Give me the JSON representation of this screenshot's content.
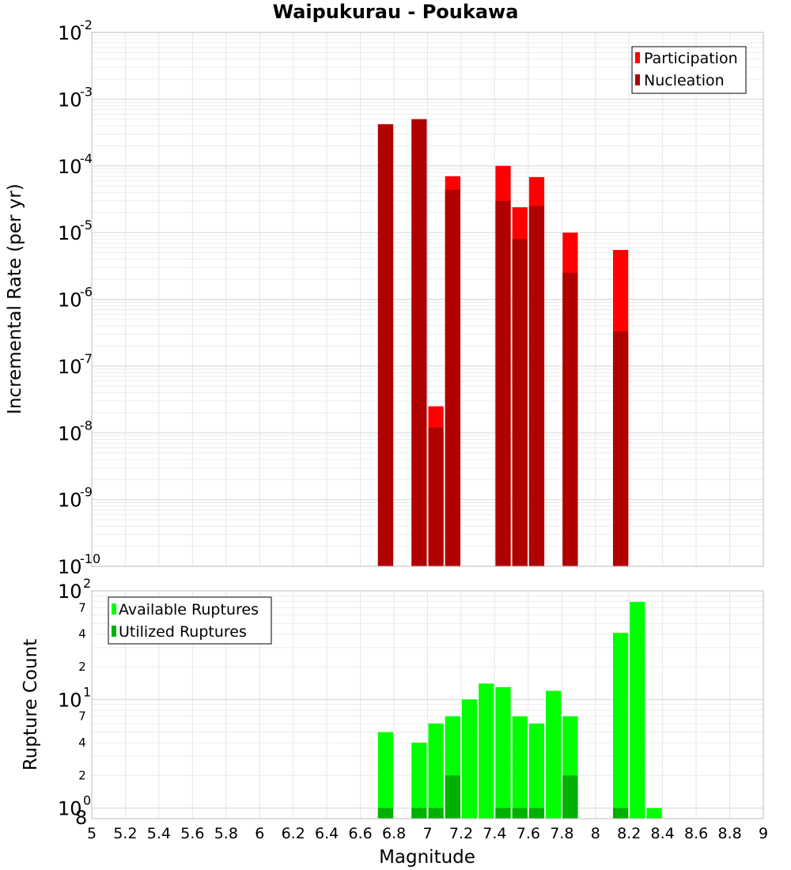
{
  "chart_data": [
    {
      "type": "bar",
      "title": "Waipukurau - Poukawa",
      "xlabel": "",
      "ylabel": "Incremental Rate (per yr)",
      "yscale": "log",
      "ylim": [
        1e-10,
        0.01
      ],
      "xlim": [
        5,
        9
      ],
      "grid": true,
      "legend": {
        "position": "top-right",
        "entries": [
          "Participation",
          "Nucleation"
        ]
      },
      "y_tick_labels": [
        "10-10",
        "10-9",
        "10-8",
        "10-7",
        "10-6",
        "10-5",
        "10-4",
        "10-3",
        "10-2"
      ],
      "series": [
        {
          "name": "Participation",
          "color": "#ff0000",
          "points": [
            {
              "x": 6.75,
              "y": 0.00042
            },
            {
              "x": 6.95,
              "y": 0.0005
            },
            {
              "x": 7.05,
              "y": 2.5e-08
            },
            {
              "x": 7.15,
              "y": 7e-05
            },
            {
              "x": 7.45,
              "y": 0.0001
            },
            {
              "x": 7.55,
              "y": 2.4e-05
            },
            {
              "x": 7.65,
              "y": 6.8e-05
            },
            {
              "x": 7.85,
              "y": 1e-05
            },
            {
              "x": 8.15,
              "y": 5.5e-06
            }
          ]
        },
        {
          "name": "Nucleation",
          "color": "#b00000",
          "points": [
            {
              "x": 6.75,
              "y": 0.00042
            },
            {
              "x": 6.95,
              "y": 0.0005
            },
            {
              "x": 7.05,
              "y": 1.2e-08
            },
            {
              "x": 7.15,
              "y": 4.4e-05
            },
            {
              "x": 7.45,
              "y": 3e-05
            },
            {
              "x": 7.55,
              "y": 8e-06
            },
            {
              "x": 7.65,
              "y": 2.5e-05
            },
            {
              "x": 7.85,
              "y": 2.5e-06
            },
            {
              "x": 8.15,
              "y": 3.3e-07
            }
          ]
        }
      ]
    },
    {
      "type": "bar",
      "title": "",
      "xlabel": "Magnitude",
      "ylabel": "Rupture Count",
      "yscale": "log",
      "ylim": [
        0.8,
        100
      ],
      "xlim": [
        5,
        9
      ],
      "grid": true,
      "legend": {
        "position": "top-left",
        "entries": [
          "Available Ruptures",
          "Utilized Ruptures"
        ]
      },
      "x_ticks": [
        5,
        5.2,
        5.4,
        5.6,
        5.8,
        6,
        6.2,
        6.4,
        6.6,
        6.8,
        7,
        7.2,
        7.4,
        7.6,
        7.8,
        8,
        8.2,
        8.4,
        8.6,
        8.8,
        9
      ],
      "x_tick_labels": [
        "5",
        "5.2",
        "5.4",
        "5.6",
        "5.8",
        "6",
        "6.2",
        "6.4",
        "6.6",
        "6.8",
        "7",
        "7.2",
        "7.4",
        "7.6",
        "7.8",
        "8",
        "8.2",
        "8.4",
        "8.6",
        "8.8",
        "9"
      ],
      "y_major_labels": [
        "10",
        "10",
        "10"
      ],
      "y_major_exponents": [
        "0",
        "1",
        "2"
      ],
      "y_bottom_label": "8",
      "y_minor_labels": [
        "2",
        "4",
        "7",
        "2",
        "4",
        "7"
      ],
      "series": [
        {
          "name": "Available Ruptures",
          "color": "#00ff00",
          "points": [
            {
              "x": 6.75,
              "y": 5
            },
            {
              "x": 6.95,
              "y": 4
            },
            {
              "x": 7.05,
              "y": 6
            },
            {
              "x": 7.15,
              "y": 7
            },
            {
              "x": 7.25,
              "y": 10
            },
            {
              "x": 7.35,
              "y": 14
            },
            {
              "x": 7.45,
              "y": 13
            },
            {
              "x": 7.55,
              "y": 7
            },
            {
              "x": 7.65,
              "y": 6
            },
            {
              "x": 7.75,
              "y": 12
            },
            {
              "x": 7.85,
              "y": 7
            },
            {
              "x": 8.15,
              "y": 41
            },
            {
              "x": 8.25,
              "y": 79
            },
            {
              "x": 8.35,
              "y": 1
            }
          ]
        },
        {
          "name": "Utilized Ruptures",
          "color": "#00b000",
          "points": [
            {
              "x": 6.75,
              "y": 1
            },
            {
              "x": 6.95,
              "y": 1
            },
            {
              "x": 7.05,
              "y": 1
            },
            {
              "x": 7.15,
              "y": 2
            },
            {
              "x": 7.45,
              "y": 1
            },
            {
              "x": 7.55,
              "y": 1
            },
            {
              "x": 7.65,
              "y": 1
            },
            {
              "x": 7.85,
              "y": 2
            },
            {
              "x": 8.15,
              "y": 1
            }
          ]
        }
      ]
    }
  ]
}
